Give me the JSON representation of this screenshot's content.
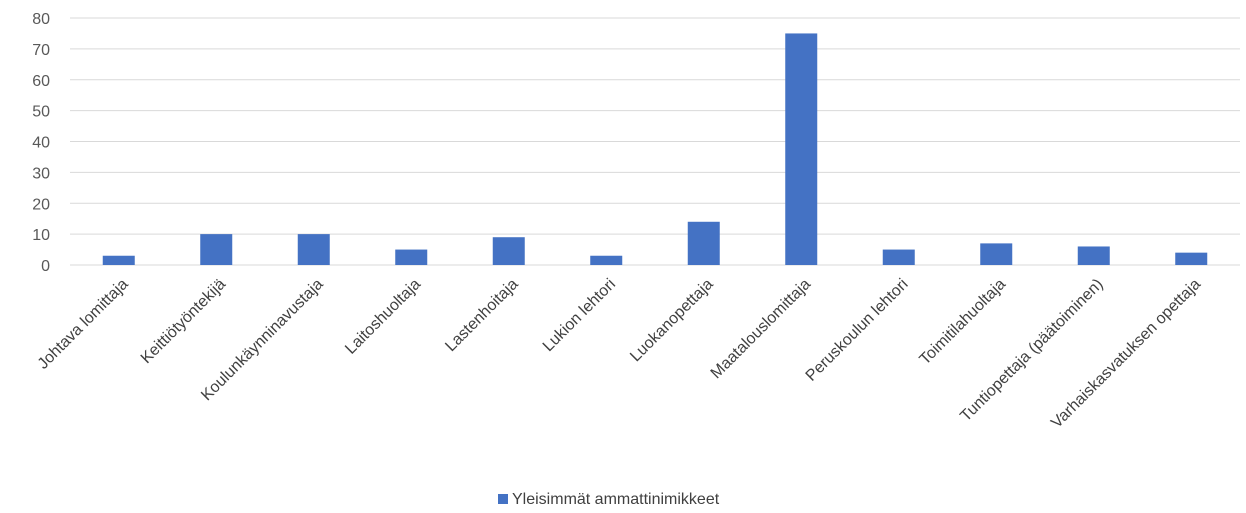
{
  "chart_data": {
    "type": "bar",
    "categories": [
      "Johtava lomittaja",
      "Keittiötyöntekijä",
      "Koulunkäynninavustaja",
      "Laitoshuoltaja",
      "Lastenhoitaja",
      "Lukion lehtori",
      "Luokanopettaja",
      "Maatalouslomittaja",
      "Peruskoulun lehtori",
      "Toimitilahuoltaja",
      "Tuntiopettaja (päätoiminen)",
      "Varhaiskasvatuksen opettaja"
    ],
    "series": [
      {
        "name": "Yleisimmät ammattinimikkeet",
        "values": [
          3,
          10,
          10,
          5,
          9,
          3,
          14,
          75,
          5,
          7,
          6,
          4
        ]
      }
    ],
    "title": "",
    "xlabel": "",
    "ylabel": "",
    "ylim": [
      0,
      80
    ],
    "yticks": [
      0,
      10,
      20,
      30,
      40,
      50,
      60,
      70,
      80
    ],
    "grid": true,
    "legend_position": "bottom",
    "colors": {
      "bar": "#4472C4",
      "grid": "#d9d9d9"
    }
  }
}
